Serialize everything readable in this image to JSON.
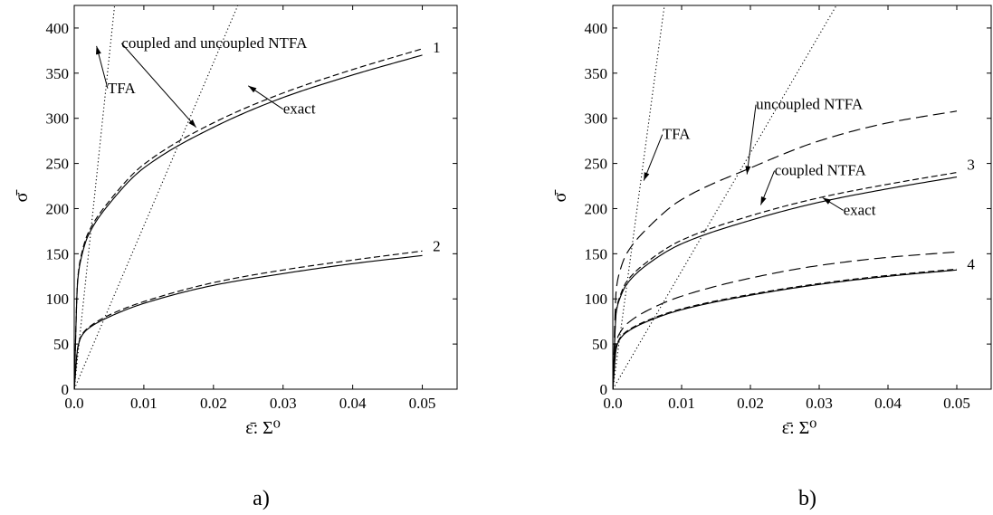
{
  "chart_data": [
    {
      "type": "line",
      "panel_label": "a)",
      "xlabel": "ε̄: Σ⁰",
      "ylabel": "σ̄",
      "xlim": [
        0.0,
        0.055
      ],
      "ylim": [
        0,
        425
      ],
      "xticks": [
        "0.0",
        "0.01",
        "0.02",
        "0.03",
        "0.04",
        "0.05"
      ],
      "yticks": [
        "0",
        "50",
        "100",
        "150",
        "200",
        "250",
        "300",
        "350",
        "400"
      ],
      "grid": false,
      "series": [
        {
          "style": "dotted",
          "x": [
            0,
            0.0058
          ],
          "y": [
            0,
            425
          ]
        },
        {
          "style": "dotted",
          "x": [
            0,
            0.0235
          ],
          "y": [
            0,
            425
          ]
        },
        {
          "style": "solid",
          "x": [
            0,
            0.0005,
            0.001,
            0.002,
            0.005,
            0.01,
            0.02,
            0.03,
            0.04,
            0.05
          ],
          "y": [
            0,
            120,
            145,
            170,
            205,
            245,
            290,
            323,
            348,
            370
          ]
        },
        {
          "style": "dashed",
          "x": [
            0,
            0.0005,
            0.001,
            0.002,
            0.005,
            0.01,
            0.02,
            0.03,
            0.04,
            0.05
          ],
          "y": [
            0,
            122,
            148,
            173,
            208,
            249,
            295,
            328,
            354,
            377
          ]
        },
        {
          "style": "solid",
          "x": [
            0,
            0.0005,
            0.001,
            0.002,
            0.005,
            0.01,
            0.02,
            0.03,
            0.04,
            0.05
          ],
          "y": [
            0,
            45,
            58,
            67,
            80,
            95,
            115,
            128,
            139,
            148
          ]
        },
        {
          "style": "dashed",
          "x": [
            0,
            0.0005,
            0.001,
            0.002,
            0.005,
            0.01,
            0.02,
            0.03,
            0.04,
            0.05
          ],
          "y": [
            0,
            46,
            59,
            68,
            82,
            97,
            118,
            132,
            143,
            153
          ]
        }
      ],
      "annotations": [
        {
          "text": "TFA",
          "x": 0.0048,
          "y": 328,
          "arrow_to": [
            0.0032,
            380
          ]
        },
        {
          "text": "coupled and uncoupled NTFA",
          "x": 0.0068,
          "y": 378,
          "arrow_to": [
            0.0175,
            290
          ]
        },
        {
          "text": "exact",
          "x": 0.03,
          "y": 305,
          "arrow_to": [
            0.025,
            336
          ]
        },
        {
          "text": "1",
          "x": 0.0515,
          "y": 373
        },
        {
          "text": "2",
          "x": 0.0515,
          "y": 153
        }
      ]
    },
    {
      "type": "line",
      "panel_label": "b)",
      "xlabel": "ε̄: Σ⁰",
      "ylabel": "σ̄",
      "xlim": [
        0.0,
        0.055
      ],
      "ylim": [
        0,
        425
      ],
      "xticks": [
        "0.0",
        "0.01",
        "0.02",
        "0.03",
        "0.04",
        "0.05"
      ],
      "yticks": [
        "0",
        "50",
        "100",
        "150",
        "200",
        "250",
        "300",
        "350",
        "400"
      ],
      "grid": false,
      "series": [
        {
          "style": "dotted",
          "x": [
            0,
            0.0075
          ],
          "y": [
            0,
            425
          ]
        },
        {
          "style": "dotted",
          "x": [
            0,
            0.0325
          ],
          "y": [
            0,
            425
          ]
        },
        {
          "style": "longdash",
          "x": [
            0,
            0.0005,
            0.001,
            0.002,
            0.005,
            0.01,
            0.02,
            0.03,
            0.04,
            0.05
          ],
          "y": [
            0,
            110,
            130,
            150,
            178,
            210,
            245,
            275,
            295,
            308
          ]
        },
        {
          "style": "solid",
          "x": [
            0,
            0.0005,
            0.001,
            0.002,
            0.005,
            0.01,
            0.02,
            0.03,
            0.04,
            0.05
          ],
          "y": [
            0,
            85,
            100,
            116,
            138,
            161,
            187,
            207,
            222,
            235
          ]
        },
        {
          "style": "dashed",
          "x": [
            0,
            0.0005,
            0.001,
            0.002,
            0.005,
            0.01,
            0.02,
            0.03,
            0.04,
            0.05
          ],
          "y": [
            0,
            87,
            102,
            119,
            141,
            165,
            192,
            212,
            227,
            240
          ]
        },
        {
          "style": "longdash",
          "x": [
            0,
            0.0005,
            0.001,
            0.002,
            0.005,
            0.01,
            0.02,
            0.03,
            0.04,
            0.05
          ],
          "y": [
            0,
            52,
            62,
            72,
            87,
            103,
            123,
            137,
            146,
            152
          ]
        },
        {
          "style": "solid",
          "x": [
            0,
            0.0005,
            0.001,
            0.002,
            0.005,
            0.01,
            0.02,
            0.03,
            0.04,
            0.05
          ],
          "y": [
            0,
            45,
            55,
            63,
            75,
            88,
            104,
            116,
            125,
            132
          ]
        },
        {
          "style": "dashed",
          "x": [
            0,
            0.0005,
            0.001,
            0.002,
            0.005,
            0.01,
            0.02,
            0.03,
            0.04,
            0.05
          ],
          "y": [
            0,
            46,
            56,
            64,
            76,
            89,
            105,
            117,
            126,
            133
          ]
        }
      ],
      "annotations": [
        {
          "text": "TFA",
          "x": 0.0072,
          "y": 277,
          "arrow_to": [
            0.0045,
            231
          ]
        },
        {
          "text": "uncoupled NTFA",
          "x": 0.0208,
          "y": 310,
          "arrow_to": [
            0.0195,
            238
          ]
        },
        {
          "text": "coupled NTFA",
          "x": 0.0235,
          "y": 237,
          "arrow_to": [
            0.0215,
            204
          ]
        },
        {
          "text": "exact",
          "x": 0.0335,
          "y": 193,
          "arrow_to": [
            0.0305,
            212
          ]
        },
        {
          "text": "3",
          "x": 0.0515,
          "y": 243
        },
        {
          "text": "4",
          "x": 0.0515,
          "y": 133
        }
      ]
    }
  ]
}
